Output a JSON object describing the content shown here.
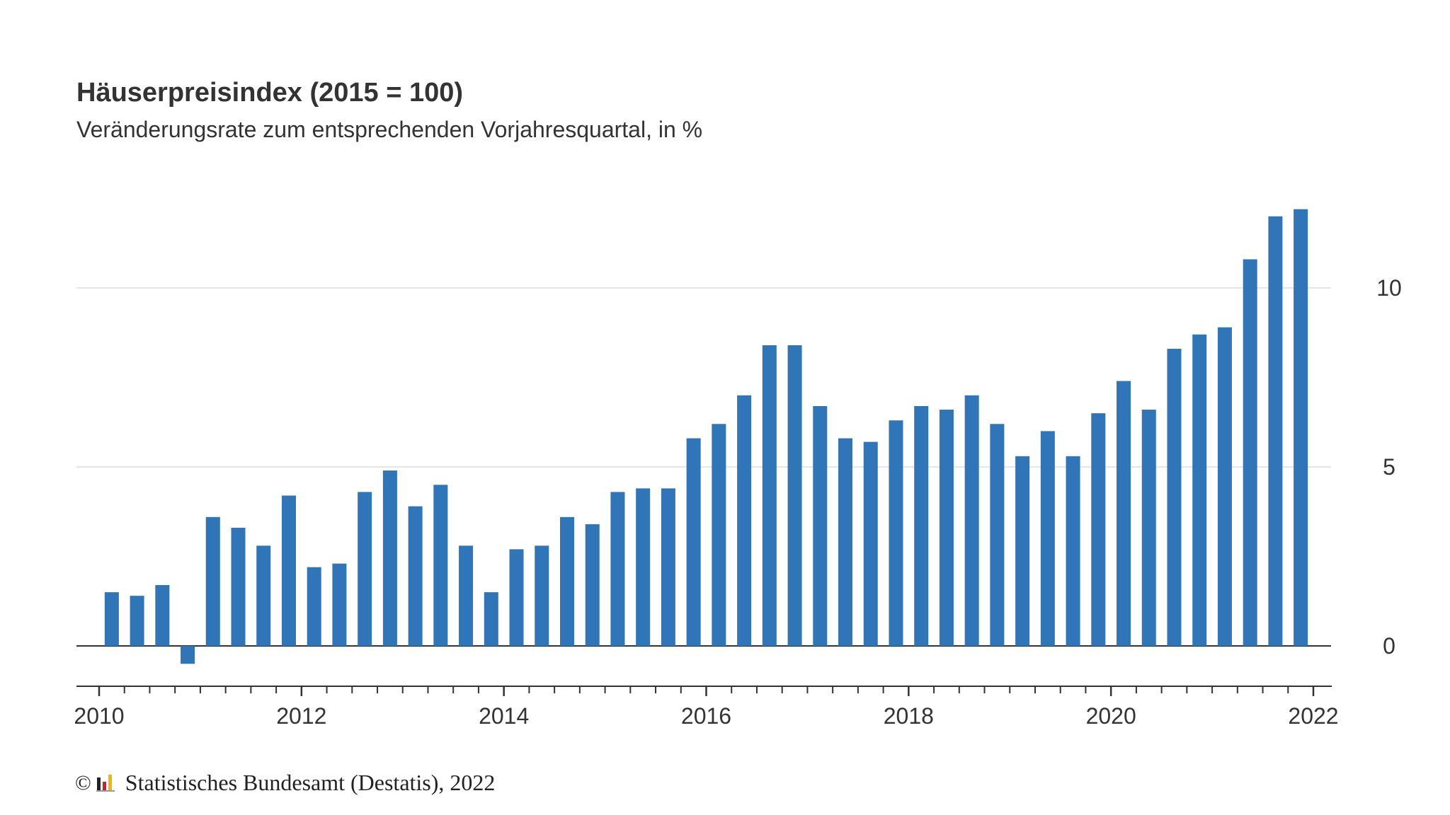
{
  "title": "Häuserpreisindex (2015 = 100)",
  "subtitle": "Veränderungsrate zum entsprechenden Vorjahresquartal, in %",
  "footer": {
    "copyright_symbol": "©",
    "source": "Statistisches Bundesamt (Destatis), 2022"
  },
  "colors": {
    "bar": "#2f75b8",
    "grid": "#dddddd",
    "zero_line": "#333333",
    "text": "#333333"
  },
  "chart_data": {
    "type": "bar",
    "title": "Häuserpreisindex (2015 = 100)",
    "subtitle": "Veränderungsrate zum entsprechenden Vorjahresquartal, in %",
    "xlabel": "",
    "ylabel": "",
    "x_start": 2010,
    "x_end": 2022,
    "xticks": [
      "2010",
      "2012",
      "2014",
      "2016",
      "2018",
      "2020",
      "2022"
    ],
    "yticks": [
      "0",
      "5",
      "10"
    ],
    "ylim": [
      -1.1,
      12.2
    ],
    "grid": true,
    "y_axis_side": "right",
    "categories": [
      "2010 Q1",
      "2010 Q2",
      "2010 Q3",
      "2010 Q4",
      "2011 Q1",
      "2011 Q2",
      "2011 Q3",
      "2011 Q4",
      "2012 Q1",
      "2012 Q2",
      "2012 Q3",
      "2012 Q4",
      "2013 Q1",
      "2013 Q2",
      "2013 Q3",
      "2013 Q4",
      "2014 Q1",
      "2014 Q2",
      "2014 Q3",
      "2014 Q4",
      "2015 Q1",
      "2015 Q2",
      "2015 Q3",
      "2015 Q4",
      "2016 Q1",
      "2016 Q2",
      "2016 Q3",
      "2016 Q4",
      "2017 Q1",
      "2017 Q2",
      "2017 Q3",
      "2017 Q4",
      "2018 Q1",
      "2018 Q2",
      "2018 Q3",
      "2018 Q4",
      "2019 Q1",
      "2019 Q2",
      "2019 Q3",
      "2019 Q4",
      "2020 Q1",
      "2020 Q2",
      "2020 Q3",
      "2020 Q4",
      "2021 Q1",
      "2021 Q2",
      "2021 Q3",
      "2021 Q4"
    ],
    "values": [
      1.5,
      1.4,
      1.7,
      -0.5,
      3.6,
      3.3,
      2.8,
      4.2,
      2.2,
      2.3,
      4.3,
      4.9,
      3.9,
      4.5,
      2.8,
      1.5,
      2.7,
      2.8,
      3.6,
      3.4,
      4.3,
      4.4,
      4.4,
      5.8,
      6.2,
      7.0,
      8.4,
      8.4,
      6.7,
      5.8,
      5.7,
      6.3,
      6.7,
      6.6,
      7.0,
      6.2,
      5.3,
      6.0,
      5.3,
      6.5,
      7.4,
      6.6,
      8.3,
      8.7,
      8.9,
      10.8,
      12.0,
      12.2
    ]
  }
}
